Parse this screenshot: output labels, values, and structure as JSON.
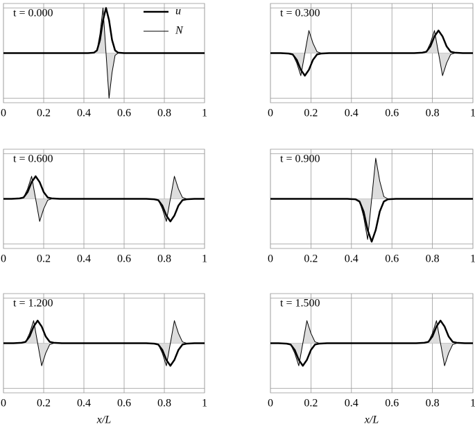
{
  "chart_data": [
    {
      "type": "line",
      "title": "t = 0.000",
      "legend": "upper right",
      "x": [
        0,
        0.42,
        0.45,
        0.465,
        0.48,
        0.495,
        0.51,
        0.525,
        0.54,
        0.555,
        0.57,
        0.6,
        1
      ],
      "series": [
        {
          "name": "u",
          "color": "#000000",
          "line_width": 2.5,
          "values": [
            0,
            0,
            0.01,
            0.06,
            0.29,
            0.73,
            1,
            0.73,
            0.29,
            0.06,
            0.01,
            0,
            0
          ]
        },
        {
          "name": "N",
          "color": "#000000",
          "line_width": 1,
          "fill": "#dddddd",
          "values": [
            0,
            0,
            0,
            0.05,
            0.43,
            1,
            0,
            -1,
            -0.43,
            -0.05,
            0,
            0,
            0
          ]
        }
      ],
      "xlim": [
        0,
        1
      ],
      "ylim": [
        -1.1,
        1.1
      ],
      "xticks": [
        0,
        0.2,
        0.4,
        0.6,
        0.8,
        1
      ],
      "yticks": [
        -1,
        0,
        1
      ],
      "grid": true
    },
    {
      "type": "line",
      "title": "t = 0.300",
      "x": [
        0,
        0.05,
        0.09,
        0.11,
        0.13,
        0.15,
        0.17,
        0.19,
        0.21,
        0.23,
        0.25,
        0.29,
        0.71,
        0.75,
        0.77,
        0.79,
        0.81,
        0.83,
        0.85,
        0.87,
        0.89,
        0.91,
        0.95,
        1
      ],
      "series": [
        {
          "name": "u",
          "color": "#000000",
          "line_width": 2.5,
          "values": [
            0,
            0,
            -0.01,
            -0.03,
            -0.15,
            -0.37,
            -0.5,
            -0.37,
            -0.15,
            -0.03,
            -0.01,
            0,
            0,
            0.01,
            0.03,
            0.15,
            0.37,
            0.5,
            0.37,
            0.15,
            0.03,
            0.01,
            0,
            0
          ]
        },
        {
          "name": "N",
          "color": "#000000",
          "line_width": 1,
          "fill": "#dddddd",
          "values": [
            0,
            0,
            0,
            -0.03,
            -0.22,
            -0.5,
            0,
            0.5,
            0.22,
            0.03,
            0,
            0,
            0,
            0,
            0.03,
            0.22,
            0.5,
            0,
            -0.5,
            -0.22,
            -0.03,
            0,
            0,
            0
          ]
        }
      ],
      "xlim": [
        0,
        1
      ],
      "ylim": [
        -1.1,
        1.1
      ],
      "xticks": [
        0,
        0.2,
        0.4,
        0.6,
        0.8,
        1
      ],
      "yticks": [
        -1,
        0,
        1
      ],
      "grid": true
    },
    {
      "type": "line",
      "title": "t = 0.600",
      "x": [
        0,
        0.04,
        0.08,
        0.1,
        0.12,
        0.14,
        0.16,
        0.18,
        0.2,
        0.22,
        0.24,
        0.28,
        0.71,
        0.75,
        0.77,
        0.79,
        0.81,
        0.83,
        0.85,
        0.87,
        0.89,
        0.91,
        0.95,
        1
      ],
      "series": [
        {
          "name": "u",
          "color": "#000000",
          "line_width": 2.5,
          "values": [
            0,
            0,
            0.01,
            0.03,
            0.15,
            0.37,
            0.5,
            0.37,
            0.15,
            0.03,
            0.01,
            0,
            0,
            -0.01,
            -0.03,
            -0.15,
            -0.37,
            -0.5,
            -0.37,
            -0.15,
            -0.03,
            -0.01,
            0,
            0
          ]
        },
        {
          "name": "N",
          "color": "#000000",
          "line_width": 1,
          "fill": "#dddddd",
          "values": [
            0,
            0,
            0,
            0.03,
            0.22,
            0.5,
            0,
            -0.5,
            -0.22,
            -0.03,
            0,
            0,
            0,
            0,
            -0.03,
            -0.22,
            -0.5,
            0,
            0.5,
            0.22,
            0.03,
            0,
            0,
            0
          ]
        }
      ],
      "xlim": [
        0,
        1
      ],
      "ylim": [
        -1.1,
        1.1
      ],
      "xticks": [
        0,
        0.2,
        0.4,
        0.6,
        0.8,
        1
      ],
      "yticks": [
        -1,
        0,
        1
      ],
      "grid": true
    },
    {
      "type": "line",
      "title": "t = 0.900",
      "x": [
        0,
        0.38,
        0.42,
        0.44,
        0.46,
        0.48,
        0.5,
        0.52,
        0.54,
        0.56,
        0.58,
        0.62,
        1
      ],
      "series": [
        {
          "name": "u",
          "color": "#000000",
          "line_width": 2.5,
          "values": [
            0,
            0,
            -0.01,
            -0.06,
            -0.28,
            -0.69,
            -0.95,
            -0.69,
            -0.28,
            -0.06,
            -0.01,
            0,
            0
          ]
        },
        {
          "name": "N",
          "color": "#000000",
          "line_width": 1,
          "fill": "#dddddd",
          "values": [
            0,
            0,
            0,
            -0.05,
            -0.39,
            -0.9,
            0,
            0.9,
            0.39,
            0.05,
            0,
            0,
            0
          ]
        }
      ],
      "xlim": [
        0,
        1
      ],
      "ylim": [
        -1.1,
        1.1
      ],
      "xticks": [
        0,
        0.2,
        0.4,
        0.6,
        0.8,
        1
      ],
      "yticks": [
        -1,
        0,
        1
      ],
      "grid": true
    },
    {
      "type": "line",
      "title": "t = 1.200",
      "xlabel": "x/L",
      "x": [
        0,
        0.05,
        0.09,
        0.11,
        0.13,
        0.15,
        0.17,
        0.19,
        0.21,
        0.23,
        0.25,
        0.29,
        0.71,
        0.75,
        0.77,
        0.79,
        0.81,
        0.83,
        0.85,
        0.87,
        0.89,
        0.91,
        0.95,
        1
      ],
      "series": [
        {
          "name": "u",
          "color": "#000000",
          "line_width": 2.5,
          "values": [
            0,
            0,
            0.01,
            0.03,
            0.15,
            0.37,
            0.5,
            0.37,
            0.15,
            0.03,
            0.01,
            0,
            0,
            -0.01,
            -0.03,
            -0.15,
            -0.37,
            -0.5,
            -0.37,
            -0.15,
            -0.03,
            -0.01,
            0,
            0
          ]
        },
        {
          "name": "N",
          "color": "#000000",
          "line_width": 1,
          "fill": "#dddddd",
          "values": [
            0,
            0,
            0,
            0.03,
            0.22,
            0.5,
            0,
            -0.5,
            -0.22,
            -0.03,
            0,
            0,
            0,
            0,
            -0.03,
            -0.22,
            -0.5,
            0,
            0.5,
            0.22,
            0.03,
            0,
            0,
            0
          ]
        }
      ],
      "xlim": [
        0,
        1
      ],
      "ylim": [
        -1.1,
        1.1
      ],
      "xticks": [
        0,
        0.2,
        0.4,
        0.6,
        0.8,
        1
      ],
      "yticks": [
        -1,
        0,
        1
      ],
      "grid": true
    },
    {
      "type": "line",
      "title": "t = 1.500",
      "xlabel": "x/L",
      "x": [
        0,
        0.04,
        0.08,
        0.1,
        0.12,
        0.14,
        0.16,
        0.18,
        0.2,
        0.22,
        0.24,
        0.28,
        0.72,
        0.76,
        0.78,
        0.8,
        0.82,
        0.84,
        0.86,
        0.88,
        0.9,
        0.92,
        0.96,
        1
      ],
      "series": [
        {
          "name": "u",
          "color": "#000000",
          "line_width": 2.5,
          "values": [
            0,
            0,
            -0.01,
            -0.03,
            -0.15,
            -0.37,
            -0.5,
            -0.37,
            -0.15,
            -0.03,
            -0.01,
            0,
            0,
            0.01,
            0.03,
            0.15,
            0.37,
            0.5,
            0.37,
            0.15,
            0.03,
            0.01,
            0,
            0
          ]
        },
        {
          "name": "N",
          "color": "#000000",
          "line_width": 1,
          "fill": "#dddddd",
          "values": [
            0,
            0,
            0,
            -0.03,
            -0.22,
            -0.5,
            0,
            0.5,
            0.22,
            0.03,
            0,
            0,
            0,
            0,
            0.03,
            0.22,
            0.5,
            0,
            -0.5,
            -0.22,
            -0.03,
            0,
            0,
            0
          ]
        }
      ],
      "xlim": [
        0,
        1
      ],
      "ylim": [
        -1.1,
        1.1
      ],
      "xticks": [
        0,
        0.2,
        0.4,
        0.6,
        0.8,
        1
      ],
      "yticks": [
        -1,
        0,
        1
      ],
      "grid": true
    }
  ]
}
